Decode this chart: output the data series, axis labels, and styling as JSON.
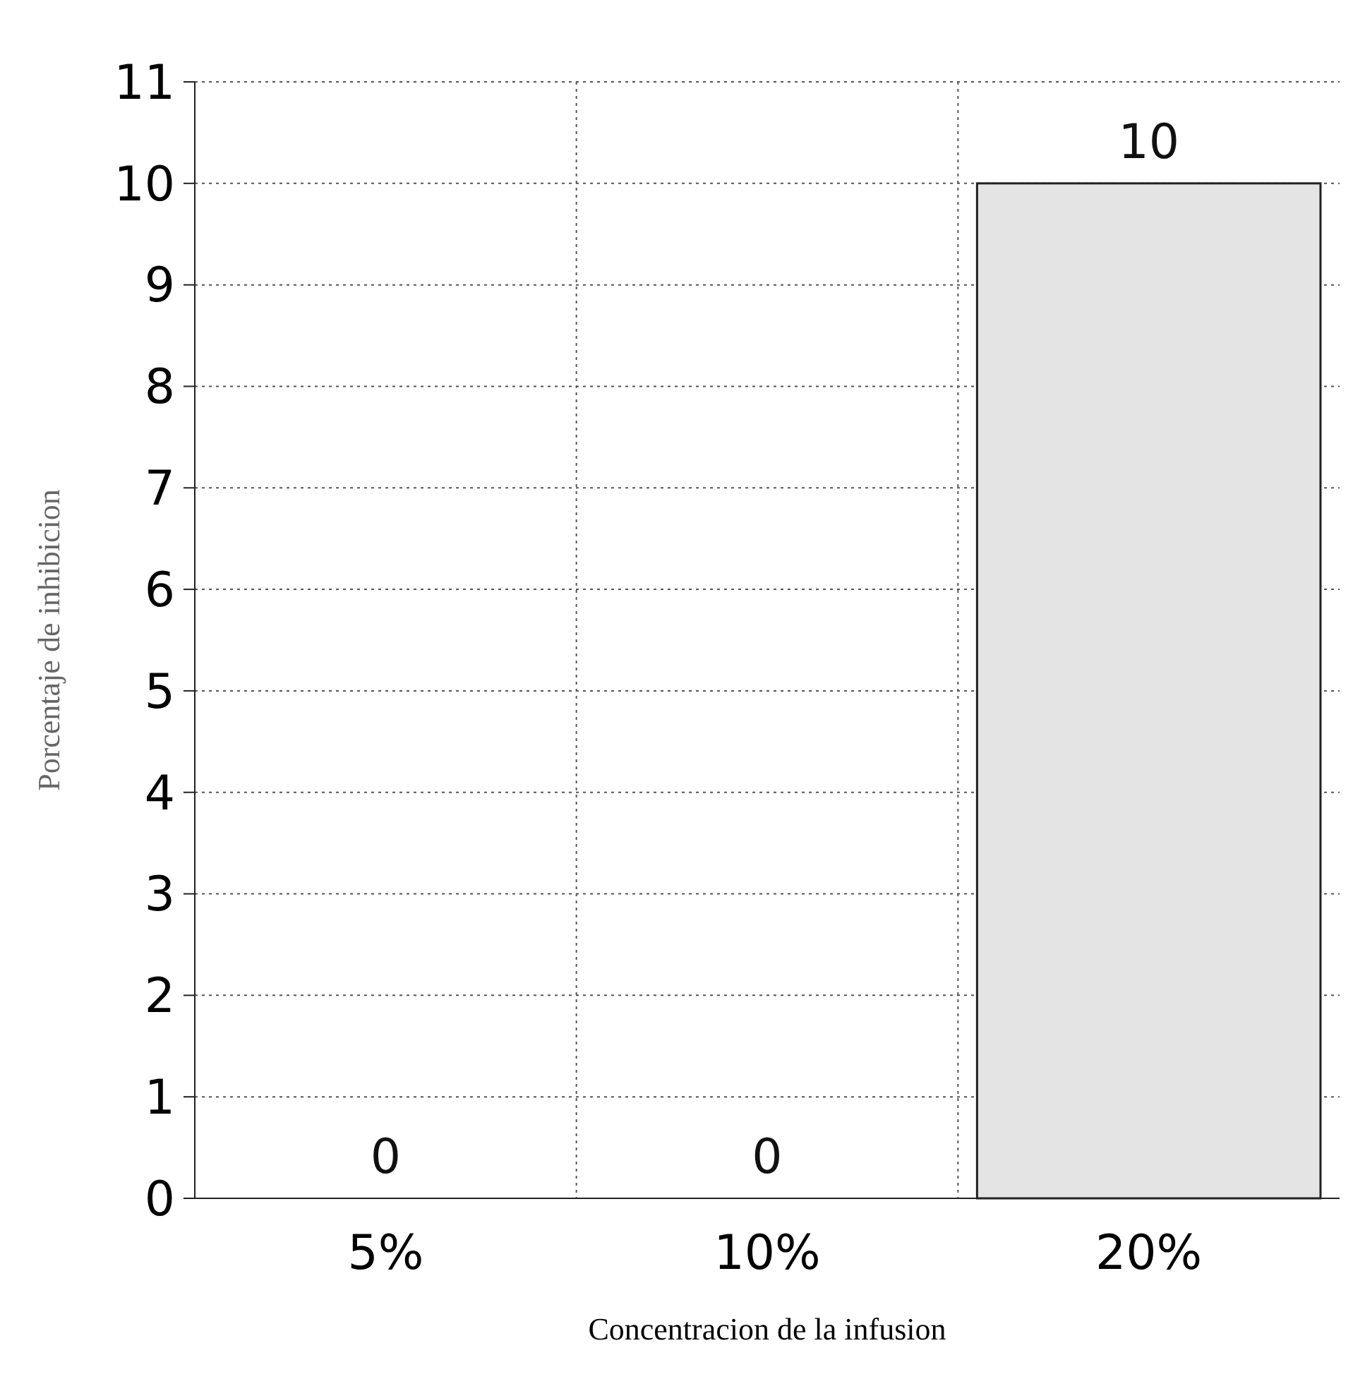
{
  "chart_data": {
    "type": "bar",
    "xlabel": "Concentracion de la infusion",
    "ylabel": "Porcentaje de inhibicion",
    "categories": [
      "5%",
      "10%",
      "20%"
    ],
    "values": [
      0,
      0,
      10
    ],
    "color": "#e4e4e4",
    "ylim": [
      0,
      11
    ],
    "yticks": [
      0,
      1,
      2,
      3,
      4,
      5,
      6,
      7,
      8,
      9,
      10,
      11
    ],
    "grid": true,
    "data_labels": true
  }
}
